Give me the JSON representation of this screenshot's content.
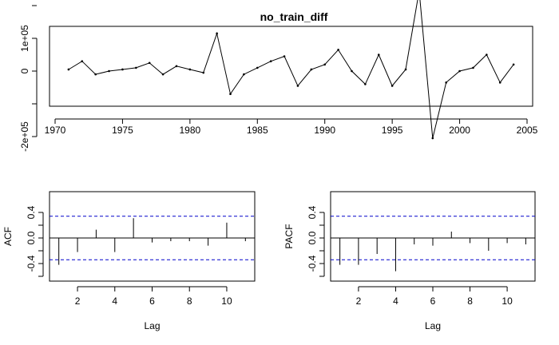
{
  "chart_data": [
    {
      "type": "line",
      "title": "no_train_diff",
      "xlabel": "",
      "ylabel": "",
      "xlim": [
        1970,
        2005
      ],
      "ylim": [
        -200000,
        200000
      ],
      "x_ticks": [
        "1970",
        "1975",
        "1980",
        "1985",
        "1990",
        "1995",
        "2000",
        "2005"
      ],
      "y_ticks": [
        "-2e+05",
        "0",
        "1e+05"
      ],
      "x": [
        1971,
        1972,
        1973,
        1974,
        1975,
        1976,
        1977,
        1978,
        1979,
        1980,
        1981,
        1982,
        1983,
        1984,
        1985,
        1986,
        1987,
        1988,
        1989,
        1990,
        1991,
        1992,
        1993,
        1994,
        1995,
        1996,
        1997,
        1998,
        1999,
        2000,
        2001,
        2002,
        2003,
        2004
      ],
      "values": [
        5000,
        30000,
        -10000,
        0,
        5000,
        10000,
        25000,
        -10000,
        15000,
        5000,
        -5000,
        115000,
        -70000,
        -10000,
        10000,
        30000,
        45000,
        -45000,
        5000,
        20000,
        65000,
        0,
        -40000,
        50000,
        -45000,
        5000,
        245000,
        -205000,
        -35000,
        0,
        10000,
        50000,
        -35000,
        20000
      ]
    },
    {
      "type": "bar",
      "ylabel": "ACF",
      "xlabel": "Lag",
      "xlim": [
        0.5,
        11.5
      ],
      "ylim": [
        -0.65,
        0.55
      ],
      "x_ticks": [
        "2",
        "4",
        "6",
        "8",
        "10"
      ],
      "y_ticks": [
        "-0.4",
        "0.0",
        "0.4"
      ],
      "lags": [
        1,
        2,
        3,
        4,
        5,
        6,
        7,
        8,
        9,
        10,
        11
      ],
      "values": [
        -0.42,
        -0.22,
        0.13,
        -0.22,
        0.31,
        -0.07,
        -0.05,
        -0.05,
        -0.12,
        0.24,
        -0.05
      ],
      "confidence_band": 0.34,
      "band_color": "#0000cc"
    },
    {
      "type": "bar",
      "ylabel": "PACF",
      "xlabel": "Lag",
      "xlim": [
        0.5,
        11.5
      ],
      "ylim": [
        -0.65,
        0.55
      ],
      "x_ticks": [
        "2",
        "4",
        "6",
        "8",
        "10"
      ],
      "y_ticks": [
        "-0.4",
        "0.0",
        "0.4"
      ],
      "lags": [
        1,
        2,
        3,
        4,
        5,
        6,
        7,
        8,
        9,
        10,
        11
      ],
      "values": [
        -0.42,
        -0.42,
        -0.25,
        -0.52,
        -0.1,
        -0.12,
        0.1,
        -0.08,
        -0.2,
        -0.08,
        -0.1
      ],
      "confidence_band": 0.34,
      "band_color": "#0000cc"
    }
  ]
}
